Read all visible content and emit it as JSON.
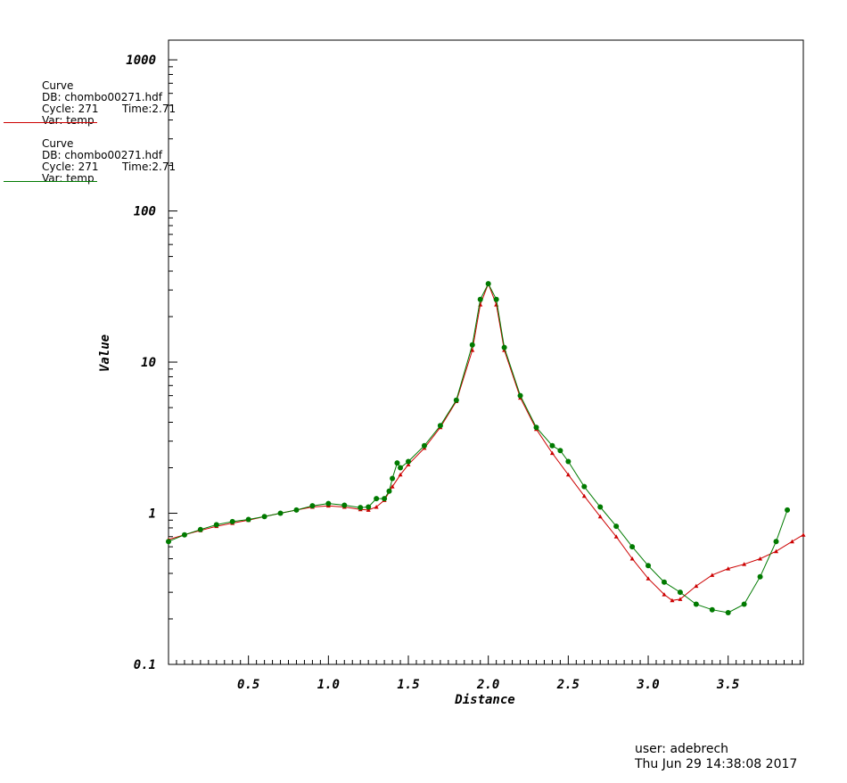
{
  "legend": [
    {
      "title": "Curve",
      "db": "DB: chombo00271.hdf",
      "cycle": "Cycle: 271",
      "time": "Time:2.71",
      "var": "Var: temp",
      "color": "#cc0000"
    },
    {
      "title": "Curve",
      "db": "DB: chombo00271.hdf",
      "cycle": "Cycle: 271",
      "time": "Time:2.71",
      "var": "Var: temp",
      "color": "#007a00"
    }
  ],
  "footer": {
    "user": "user: adebrech",
    "date": "Thu Jun 29 14:38:08 2017"
  },
  "chart_data": {
    "type": "line",
    "xlabel": "Distance",
    "ylabel": "Value",
    "xlim": [
      0.0,
      3.97
    ],
    "ylim": [
      0.1,
      1350
    ],
    "yscale": "log",
    "xticks": [
      "0.5",
      "1.0",
      "1.5",
      "2.0",
      "2.5",
      "3.0",
      "3.5"
    ],
    "yticks": [
      "0.1",
      "1",
      "10",
      "100",
      "1000"
    ],
    "series": [
      {
        "color": "#cc0000",
        "marker": "triangle",
        "x": [
          0.0,
          0.1,
          0.2,
          0.3,
          0.4,
          0.5,
          0.6,
          0.7,
          0.8,
          0.9,
          1.0,
          1.1,
          1.2,
          1.25,
          1.3,
          1.35,
          1.4,
          1.45,
          1.5,
          1.6,
          1.7,
          1.8,
          1.9,
          1.95,
          2.0,
          2.05,
          2.1,
          2.2,
          2.3,
          2.4,
          2.5,
          2.6,
          2.7,
          2.8,
          2.9,
          3.0,
          3.1,
          3.15,
          3.2,
          3.3,
          3.4,
          3.5,
          3.6,
          3.7,
          3.8,
          3.9,
          3.97
        ],
        "y": [
          0.67,
          0.72,
          0.77,
          0.82,
          0.86,
          0.9,
          0.95,
          1.0,
          1.05,
          1.1,
          1.12,
          1.1,
          1.06,
          1.05,
          1.1,
          1.22,
          1.5,
          1.8,
          2.1,
          2.7,
          3.7,
          5.5,
          12.0,
          24.0,
          33.0,
          24.0,
          12.0,
          5.8,
          3.6,
          2.5,
          1.8,
          1.3,
          0.95,
          0.7,
          0.5,
          0.37,
          0.29,
          0.265,
          0.27,
          0.33,
          0.39,
          0.43,
          0.46,
          0.5,
          0.56,
          0.65,
          0.72
        ]
      },
      {
        "color": "#007a00",
        "marker": "circle",
        "x": [
          0.0,
          0.1,
          0.2,
          0.3,
          0.4,
          0.5,
          0.6,
          0.7,
          0.8,
          0.9,
          1.0,
          1.1,
          1.2,
          1.25,
          1.3,
          1.35,
          1.38,
          1.4,
          1.43,
          1.45,
          1.5,
          1.6,
          1.7,
          1.8,
          1.9,
          1.95,
          2.0,
          2.05,
          2.1,
          2.2,
          2.3,
          2.4,
          2.45,
          2.5,
          2.6,
          2.7,
          2.8,
          2.9,
          3.0,
          3.1,
          3.2,
          3.3,
          3.4,
          3.5,
          3.6,
          3.7,
          3.8,
          3.87
        ],
        "y": [
          0.65,
          0.72,
          0.78,
          0.84,
          0.88,
          0.91,
          0.95,
          1.0,
          1.05,
          1.12,
          1.16,
          1.13,
          1.09,
          1.1,
          1.25,
          1.25,
          1.4,
          1.7,
          2.15,
          2.0,
          2.2,
          2.8,
          3.8,
          5.6,
          13.0,
          26.0,
          33.0,
          26.0,
          12.5,
          6.0,
          3.7,
          2.8,
          2.6,
          2.2,
          1.5,
          1.1,
          0.82,
          0.6,
          0.45,
          0.35,
          0.3,
          0.25,
          0.23,
          0.22,
          0.25,
          0.38,
          0.65,
          1.05
        ]
      }
    ]
  }
}
